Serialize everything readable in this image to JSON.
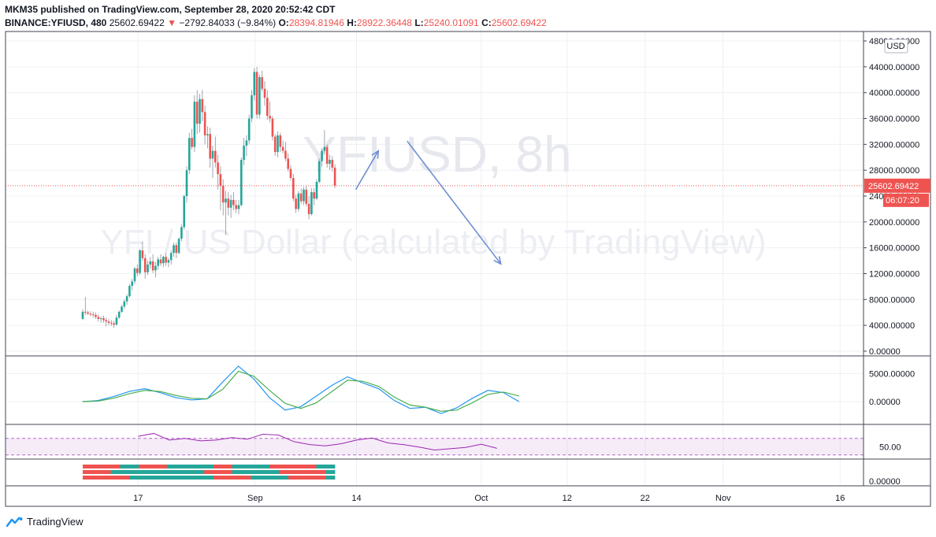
{
  "header": {
    "publisher": "MKM35 published on TradingView.com, September 28, 2020 20:52:42 CDT",
    "symbol": "BINANCE:YFIUSD, 480",
    "last": "25602.69422",
    "change": "−2792.84033 (−9.84%)",
    "o_label": "O:",
    "o_value": "28394.81946",
    "h_label": "H:",
    "h_value": "28922.36448",
    "l_label": "L:",
    "l_value": "25240.01091",
    "c_label": "C:",
    "c_value": "25602.69422"
  },
  "watermark": {
    "line1": "YFIUSD, 8h",
    "line2": "YFI / US Dollar (calculated by TradingView)"
  },
  "footer": {
    "brand": "TradingView"
  },
  "colors": {
    "up": "#26a69a",
    "down": "#ef5350",
    "arrow": "#6f8fd1",
    "macd": "#2196f3",
    "signal": "#4caf50",
    "rsi": "#9c27b0"
  },
  "chart_data": [
    {
      "type": "candlestick",
      "currency_badge": "USD",
      "price_label": "25602.69422",
      "countdown_label": "06:07:20",
      "ylim": [
        0,
        48000
      ],
      "y_ticks": [
        "48000.00000",
        "44000.00000",
        "40000.00000",
        "36000.00000",
        "32000.00000",
        "28000.00000",
        "24000.00000",
        "20000.00000",
        "16000.00000",
        "12000.00000",
        "8000.00000",
        "4000.00000",
        "0.00000"
      ],
      "x_ticks": [
        "17",
        "Sep",
        "14",
        "Oct",
        "12",
        "22",
        "Nov",
        "16"
      ],
      "x_tick_days": [
        17,
        32,
        45,
        61,
        72,
        82,
        92,
        107
      ],
      "x_domain_days": [
        0,
        110
      ],
      "x_note": "x values are days counted from 2020-08-01",
      "last_price": 25602.69,
      "arrows": [
        {
          "from": [
            44.9,
            25000
          ],
          "to": [
            47.8,
            31000
          ]
        },
        {
          "from": [
            51.5,
            32500
          ],
          "to": [
            63.5,
            13500
          ]
        }
      ]
    },
    {
      "type": "line",
      "name": "MACD",
      "ylim": [
        -2500,
        7000
      ],
      "y_ticks": [
        "5000.00000",
        "0.00000"
      ],
      "series": [
        {
          "name": "MACD",
          "x_start": 9.85,
          "x_step": 2.0,
          "values": [
            0,
            200,
            900,
            1800,
            2300,
            1600,
            700,
            300,
            500,
            3500,
            6300,
            4000,
            700,
            -1500,
            -900,
            1000,
            2900,
            4400,
            3300,
            2300,
            200,
            -1200,
            -1000,
            -2100,
            -1100,
            600,
            2000,
            1600,
            0
          ]
        },
        {
          "name": "Signal",
          "x_start": 9.85,
          "x_step": 2.0,
          "values": [
            0,
            100,
            600,
            1400,
            2000,
            1800,
            1100,
            600,
            500,
            2200,
            5400,
            4500,
            2000,
            -300,
            -1200,
            -200,
            1800,
            3800,
            3600,
            2700,
            800,
            -600,
            -1000,
            -1700,
            -1500,
            -200,
            1300,
            1700,
            1000
          ]
        }
      ]
    },
    {
      "type": "line",
      "name": "RSI",
      "ylim": [
        20,
        100
      ],
      "y_ticks": [
        "50.00"
      ],
      "band": [
        30,
        70
      ],
      "series": [
        {
          "name": "RSI",
          "x_start": 17.0,
          "x_step": 2.0,
          "values": [
            75,
            82,
            66,
            70,
            64,
            66,
            72,
            68,
            80,
            78,
            62,
            55,
            52,
            57,
            66,
            71,
            59,
            55,
            49,
            42,
            45,
            48,
            56,
            46
          ]
        }
      ]
    },
    {
      "type": "heatmap",
      "name": "Trend strength",
      "y_ticks": [
        "0.00000"
      ],
      "rows": [
        [
          "#ef5350",
          "#ef5350",
          "#ef5350",
          "#ef5350",
          "#26a69a",
          "#26a69a",
          "#ef5350",
          "#ef5350",
          "#ef5350",
          "#26a69a",
          "#26a69a",
          "#26a69a",
          "#26a69a",
          "#26a69a",
          "#ef5350",
          "#ef5350",
          "#26a69a",
          "#26a69a",
          "#26a69a",
          "#26a69a",
          "#ef5350",
          "#ef5350",
          "#ef5350",
          "#ef5350",
          "#ef5350",
          "#26a69a",
          "#26a69a"
        ],
        [
          "#ef5350",
          "#ef5350",
          "#ef5350",
          "#26a69a",
          "#26a69a",
          "#26a69a",
          "#26a69a",
          "#26a69a",
          "#26a69a",
          "#26a69a",
          "#26a69a",
          "#26a69a",
          "#26a69a",
          "#ef5350",
          "#ef5350",
          "#ef5350",
          "#26a69a",
          "#26a69a",
          "#26a69a",
          "#26a69a",
          "#26a69a",
          "#ef5350",
          "#ef5350",
          "#ef5350",
          "#ef5350",
          "#ef5350",
          "#26a69a"
        ],
        [
          "#ef5350",
          "#ef5350",
          "#ef5350",
          "#ef5350",
          "#ef5350",
          "#26a69a",
          "#26a69a",
          "#26a69a",
          "#26a69a",
          "#26a69a",
          "#26a69a",
          "#26a69a",
          "#26a69a",
          "#26a69a",
          "#ef5350",
          "#ef5350",
          "#ef5350",
          "#ef5350",
          "#26a69a",
          "#26a69a",
          "#26a69a",
          "#26a69a",
          "#ef5350",
          "#ef5350",
          "#ef5350",
          "#ef5350",
          "#26a69a"
        ]
      ]
    }
  ],
  "candles": {
    "x_start": 9.9,
    "x_step": 0.3333,
    "ohlc": [
      [
        5000,
        6500,
        4800,
        6100
      ],
      [
        6100,
        8400,
        5600,
        6000
      ],
      [
        6000,
        6300,
        5600,
        5800
      ],
      [
        5800,
        6200,
        5400,
        5700
      ],
      [
        5700,
        6100,
        5200,
        5600
      ],
      [
        5600,
        6000,
        5000,
        5300
      ],
      [
        5300,
        5700,
        4600,
        5000
      ],
      [
        5000,
        5400,
        4400,
        5100
      ],
      [
        5100,
        5500,
        4400,
        4800
      ],
      [
        4800,
        5200,
        3800,
        4600
      ],
      [
        4600,
        5000,
        4000,
        4400
      ],
      [
        4400,
        4800,
        3900,
        4300
      ],
      [
        4300,
        4700,
        3600,
        4100
      ],
      [
        4100,
        5600,
        4000,
        5200
      ],
      [
        5200,
        6300,
        5000,
        6100
      ],
      [
        6100,
        7200,
        5900,
        6900
      ],
      [
        6900,
        8000,
        6600,
        7700
      ],
      [
        7700,
        8800,
        7200,
        8500
      ],
      [
        8500,
        10400,
        8300,
        10100
      ],
      [
        10100,
        11200,
        9400,
        10800
      ],
      [
        10800,
        13000,
        10400,
        12800
      ],
      [
        12800,
        13400,
        11600,
        12100
      ],
      [
        12100,
        15800,
        11800,
        15600
      ],
      [
        15600,
        17000,
        14000,
        14400
      ],
      [
        14400,
        15000,
        11200,
        12200
      ],
      [
        12200,
        14000,
        11800,
        13400
      ],
      [
        13400,
        14600,
        12800,
        13900
      ],
      [
        13900,
        15000,
        12100,
        12500
      ],
      [
        12500,
        13800,
        11400,
        13200
      ],
      [
        13200,
        14600,
        12600,
        14200
      ],
      [
        14200,
        15000,
        13200,
        13600
      ],
      [
        13600,
        14800,
        13000,
        14600
      ],
      [
        14600,
        15200,
        13200,
        13700
      ],
      [
        13700,
        14400,
        13000,
        14100
      ],
      [
        14100,
        15600,
        13400,
        15200
      ],
      [
        15200,
        16800,
        14600,
        16400
      ],
      [
        16400,
        16800,
        14400,
        15200
      ],
      [
        15200,
        17600,
        15000,
        17400
      ],
      [
        17400,
        19600,
        17000,
        19200
      ],
      [
        19200,
        24200,
        18800,
        24000
      ],
      [
        24000,
        28600,
        23000,
        28000
      ],
      [
        28000,
        33800,
        27400,
        33000
      ],
      [
        33000,
        34400,
        31200,
        31600
      ],
      [
        31600,
        39600,
        30800,
        38600
      ],
      [
        38600,
        40400,
        33600,
        35200
      ],
      [
        35200,
        39800,
        33800,
        39000
      ],
      [
        39000,
        40400,
        35600,
        37000
      ],
      [
        37000,
        38000,
        32000,
        33400
      ],
      [
        33400,
        34800,
        31400,
        33600
      ],
      [
        33600,
        34600,
        28400,
        29800
      ],
      [
        29800,
        31800,
        26800,
        31000
      ],
      [
        31000,
        33200,
        28400,
        29200
      ],
      [
        29200,
        30400,
        25000,
        27400
      ],
      [
        27400,
        28600,
        21800,
        25600
      ],
      [
        25600,
        26600,
        21000,
        23000
      ],
      [
        23000,
        24800,
        18000,
        23600
      ],
      [
        23600,
        24600,
        21000,
        22200
      ],
      [
        22200,
        24200,
        20600,
        23400
      ],
      [
        23400,
        24600,
        21800,
        22600
      ],
      [
        22600,
        23400,
        21400,
        22000
      ],
      [
        22000,
        23400,
        21200,
        22600
      ],
      [
        22600,
        30000,
        22400,
        29600
      ],
      [
        29600,
        33000,
        28800,
        31800
      ],
      [
        31800,
        33400,
        30200,
        32600
      ],
      [
        32600,
        36600,
        32000,
        36000
      ],
      [
        36000,
        40400,
        35400,
        39600
      ],
      [
        39600,
        43800,
        38800,
        43200
      ],
      [
        43200,
        44000,
        36000,
        36600
      ],
      [
        36600,
        42800,
        36000,
        42400
      ],
      [
        42400,
        43400,
        40200,
        40600
      ],
      [
        40600,
        41800,
        38000,
        39200
      ],
      [
        39200,
        40400,
        35800,
        36400
      ],
      [
        36400,
        38600,
        35400,
        36000
      ],
      [
        36000,
        36400,
        32600,
        33200
      ],
      [
        33200,
        33600,
        30200,
        30800
      ],
      [
        30800,
        34000,
        30000,
        33400
      ],
      [
        33400,
        33800,
        30800,
        31600
      ],
      [
        31600,
        32600,
        30600,
        31000
      ],
      [
        31000,
        32400,
        29400,
        29800
      ],
      [
        29800,
        30600,
        27800,
        28200
      ],
      [
        28200,
        28800,
        26400,
        26800
      ],
      [
        26800,
        27400,
        23200,
        23600
      ],
      [
        23600,
        24200,
        21400,
        22000
      ],
      [
        22000,
        24800,
        21600,
        24400
      ],
      [
        24400,
        25200,
        22800,
        23200
      ],
      [
        23200,
        25400,
        22600,
        25000
      ],
      [
        25000,
        25600,
        22400,
        22800
      ],
      [
        22800,
        24000,
        20400,
        21200
      ],
      [
        21200,
        25200,
        21000,
        24600
      ],
      [
        24600,
        25200,
        22600,
        23600
      ],
      [
        23600,
        26600,
        23400,
        26200
      ],
      [
        26200,
        29800,
        26000,
        29400
      ],
      [
        29400,
        31400,
        28600,
        31000
      ],
      [
        31000,
        34200,
        30400,
        31600
      ],
      [
        31600,
        32000,
        28400,
        29000
      ],
      [
        29000,
        30400,
        28000,
        29600
      ],
      [
        29600,
        30200,
        27800,
        28400
      ],
      [
        28400,
        28922,
        25240,
        25603
      ]
    ]
  }
}
